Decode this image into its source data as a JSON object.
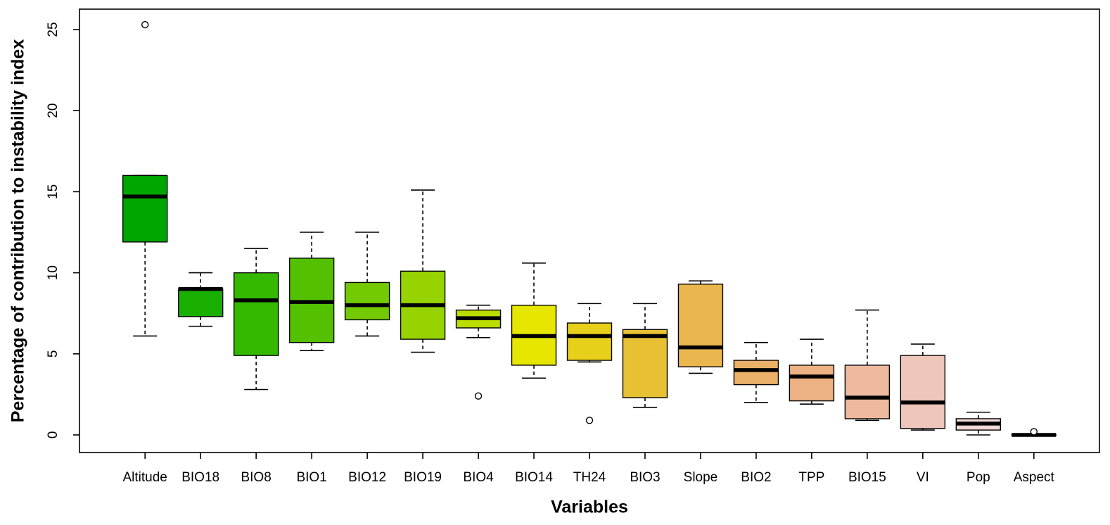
{
  "chart_data": {
    "type": "boxplot",
    "title": "",
    "xlabel": "Variables",
    "ylabel": "Percentage of contribution to instability index",
    "ylim": [
      0,
      25
    ],
    "yticks": [
      0,
      5,
      10,
      15,
      20,
      25
    ],
    "grid": false,
    "legend": "none",
    "frame": true,
    "axis_color": "#000000",
    "background": "#ffffff",
    "categories": [
      "Altitude",
      "BIO18",
      "BIO8",
      "BIO1",
      "BIO12",
      "BIO19",
      "BIO4",
      "BIO14",
      "TH24",
      "BIO3",
      "Slope",
      "BIO2",
      "TPP",
      "BIO15",
      "VI",
      "Pop",
      "Aspect"
    ],
    "series": [
      {
        "name": "Altitude",
        "color": "#00A600",
        "whislo": 6.1,
        "q1": 11.9,
        "med": 14.7,
        "q3": 16.0,
        "whishi": 16.0,
        "outliers": [
          25.3
        ]
      },
      {
        "name": "BIO18",
        "color": "#19AF00",
        "whislo": 6.7,
        "q1": 7.3,
        "med": 9.0,
        "q3": 9.0,
        "whishi": 10.0,
        "outliers": []
      },
      {
        "name": "BIO8",
        "color": "#35B800",
        "whislo": 2.8,
        "q1": 4.9,
        "med": 8.3,
        "q3": 10.0,
        "whishi": 11.5,
        "outliers": []
      },
      {
        "name": "BIO1",
        "color": "#53C100",
        "whislo": 5.2,
        "q1": 5.7,
        "med": 8.2,
        "q3": 10.9,
        "whishi": 12.5,
        "outliers": []
      },
      {
        "name": "BIO12",
        "color": "#74CA00",
        "whislo": 6.1,
        "q1": 7.1,
        "med": 8.0,
        "q3": 9.4,
        "whishi": 12.5,
        "outliers": []
      },
      {
        "name": "BIO19",
        "color": "#97D300",
        "whislo": 5.1,
        "q1": 5.9,
        "med": 8.0,
        "q3": 10.1,
        "whishi": 15.1,
        "outliers": []
      },
      {
        "name": "BIO4",
        "color": "#BDDC00",
        "whislo": 6.0,
        "q1": 6.6,
        "med": 7.2,
        "q3": 7.7,
        "whishi": 8.0,
        "outliers": [
          2.4
        ]
      },
      {
        "name": "BIO14",
        "color": "#E6E600",
        "whislo": 3.5,
        "q1": 4.3,
        "med": 6.1,
        "q3": 8.0,
        "whishi": 10.6,
        "outliers": []
      },
      {
        "name": "TH24",
        "color": "#E7D01A",
        "whislo": 4.5,
        "q1": 4.6,
        "med": 6.1,
        "q3": 6.9,
        "whishi": 8.1,
        "outliers": [
          0.9
        ]
      },
      {
        "name": "BIO3",
        "color": "#E8C034",
        "whislo": 1.7,
        "q1": 2.3,
        "med": 6.1,
        "q3": 6.5,
        "whishi": 8.1,
        "outliers": []
      },
      {
        "name": "Slope",
        "color": "#EAB64E",
        "whislo": 3.8,
        "q1": 4.2,
        "med": 5.4,
        "q3": 9.3,
        "whishi": 9.5,
        "outliers": []
      },
      {
        "name": "BIO2",
        "color": "#EBB169",
        "whislo": 2.0,
        "q1": 3.1,
        "med": 4.0,
        "q3": 4.6,
        "whishi": 5.7,
        "outliers": []
      },
      {
        "name": "TPP",
        "color": "#EDB283",
        "whislo": 1.9,
        "q1": 2.1,
        "med": 3.6,
        "q3": 4.3,
        "whishi": 5.9,
        "outliers": []
      },
      {
        "name": "BIO15",
        "color": "#EEB99F",
        "whislo": 0.9,
        "q1": 1.0,
        "med": 2.3,
        "q3": 4.3,
        "whishi": 7.7,
        "outliers": []
      },
      {
        "name": "VI",
        "color": "#EFC6BA",
        "whislo": 0.3,
        "q1": 0.4,
        "med": 2.0,
        "q3": 4.9,
        "whishi": 5.6,
        "outliers": []
      },
      {
        "name": "Pop",
        "color": "#F1D9D6",
        "whislo": 0.0,
        "q1": 0.3,
        "med": 0.7,
        "q3": 1.0,
        "whishi": 1.4,
        "outliers": []
      },
      {
        "name": "Aspect",
        "color": "#F2F2F2",
        "whislo": 0.0,
        "q1": 0.0,
        "med": 0.0,
        "q3": 0.0,
        "whishi": 0.0,
        "outliers": [
          0.2
        ]
      }
    ]
  }
}
